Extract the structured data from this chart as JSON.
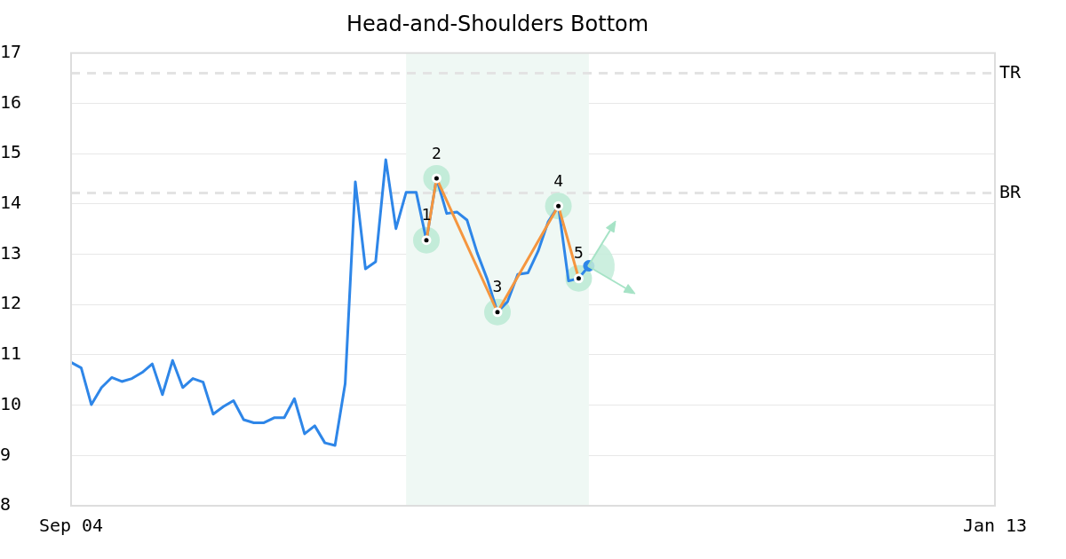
{
  "chart_data": {
    "type": "line",
    "title": "Head-and-Shoulders Bottom",
    "categories": [
      "Sep 04",
      null,
      null,
      null,
      null,
      null,
      null,
      null,
      null,
      null,
      null,
      null,
      null,
      null,
      null,
      null,
      null,
      null,
      null,
      null,
      null,
      null,
      null,
      null,
      null,
      null,
      null,
      null,
      null,
      null,
      null,
      null,
      null,
      null,
      null,
      null,
      null,
      null,
      null,
      null,
      null,
      null,
      null,
      null,
      null,
      null,
      null,
      null,
      null,
      null,
      null,
      null,
      null,
      null,
      null,
      null,
      null,
      null,
      null,
      null,
      null,
      null,
      null,
      null,
      null,
      null,
      null,
      null,
      null,
      null,
      null,
      null,
      null,
      null,
      null,
      null,
      null,
      null,
      null,
      null,
      null,
      null,
      null,
      null,
      null,
      null,
      null,
      null,
      null,
      null,
      null,
      "Jan 13"
    ],
    "ylim": [
      8,
      17
    ],
    "yticks": [
      8,
      9,
      10,
      11,
      12,
      13,
      14,
      15,
      16,
      17
    ],
    "grid": "y",
    "legend": false,
    "marker": "none",
    "line_style": "solid",
    "ref_lines": [
      {
        "axis": "y",
        "value": 16.6,
        "label": "TR",
        "color": "#e3e3e3",
        "line_style": "dashed"
      },
      {
        "axis": "y",
        "value": 14.22,
        "label": "BR",
        "color": "#e3e3e3",
        "line_style": "dashed"
      }
    ],
    "annotations": [
      "1",
      "2",
      "3",
      "4",
      "5"
    ],
    "series": [
      {
        "color": "#2e86e8",
        "values": [
          10.85,
          10.74,
          10.01,
          10.35,
          10.55,
          10.47,
          10.53,
          10.65,
          10.82,
          10.21,
          10.89,
          10.35,
          10.53,
          10.46,
          9.82,
          9.97,
          10.09,
          9.71,
          9.65,
          9.65,
          9.75,
          9.75,
          10.13,
          9.43,
          9.59,
          9.25,
          9.2,
          10.43,
          14.44,
          12.71,
          12.85,
          14.88,
          13.51,
          14.23,
          14.23,
          13.28,
          14.51,
          13.81,
          13.84,
          13.68,
          13.03,
          12.5,
          11.85,
          12.06,
          12.6,
          12.63,
          13.06,
          13.65,
          13.96,
          12.47,
          12.52,
          12.77,
          null,
          null,
          null,
          null,
          null,
          null,
          null,
          null,
          null,
          null,
          null,
          null,
          null,
          null,
          null,
          null,
          null,
          null,
          null,
          null,
          null,
          null,
          null,
          null,
          null,
          null,
          null,
          null,
          null,
          null,
          null,
          null,
          null,
          null,
          null,
          null,
          null,
          null,
          null,
          null
        ]
      },
      {
        "type": "line",
        "color": "#f5963f",
        "marker": "circle",
        "values": [
          null,
          null,
          null,
          null,
          null,
          null,
          null,
          null,
          null,
          null,
          null,
          null,
          null,
          null,
          null,
          null,
          null,
          null,
          null,
          null,
          null,
          null,
          null,
          null,
          null,
          null,
          null,
          null,
          null,
          null,
          null,
          null,
          null,
          null,
          null,
          13.28,
          14.51,
          null,
          null,
          null,
          null,
          null,
          11.85,
          null,
          null,
          null,
          null,
          null,
          13.96,
          null,
          12.52,
          null,
          null,
          null,
          null,
          null,
          null,
          null,
          null,
          null,
          null,
          null,
          null,
          null,
          null,
          null,
          null,
          null,
          null,
          null,
          null,
          null,
          null,
          null,
          null,
          null,
          null,
          null,
          null,
          null,
          null,
          null,
          null,
          null,
          null,
          null,
          null,
          null,
          null,
          null,
          null,
          null
        ]
      },
      {
        "type": "scatter",
        "color": "#2e86e8",
        "marker": "circle",
        "values": [
          null,
          null,
          null,
          null,
          null,
          null,
          null,
          null,
          null,
          null,
          null,
          null,
          null,
          null,
          null,
          null,
          null,
          null,
          null,
          null,
          null,
          null,
          null,
          null,
          null,
          null,
          null,
          null,
          null,
          null,
          null,
          null,
          null,
          null,
          null,
          null,
          null,
          null,
          null,
          null,
          null,
          null,
          null,
          null,
          null,
          null,
          null,
          null,
          null,
          null,
          null,
          12.77,
          null,
          null,
          null,
          null,
          null,
          null,
          null,
          null,
          null,
          null,
          null,
          null,
          null,
          null,
          null,
          null,
          null,
          null,
          null,
          null,
          null,
          null,
          null,
          null,
          null,
          null,
          null,
          null,
          null,
          null,
          null,
          null,
          null,
          null,
          null,
          null,
          null,
          null,
          null,
          null
        ]
      }
    ]
  }
}
